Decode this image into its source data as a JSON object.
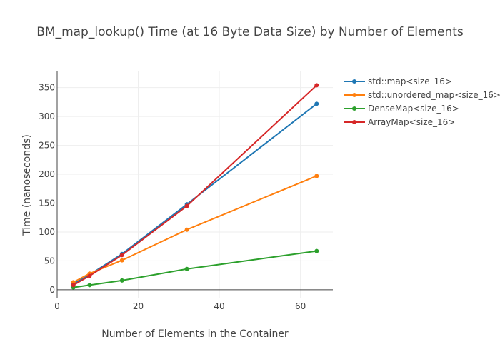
{
  "chart_data": {
    "type": "line",
    "title": "BM_map_lookup() Time (at 16 Byte Data Size) by Number of Elements",
    "xlabel": "Number of Elements in the Container",
    "ylabel": "Time (nanoseconds)",
    "xlim": [
      0,
      68
    ],
    "ylim": [
      -15,
      378
    ],
    "xticks": [
      0,
      20,
      40,
      60
    ],
    "yticks": [
      0,
      50,
      100,
      150,
      200,
      250,
      300,
      350
    ],
    "x": [
      4,
      8,
      16,
      32,
      64
    ],
    "grid": true,
    "legend_position": "top-right",
    "series": [
      {
        "name": "std::map<size_16>",
        "color": "#1f77b4",
        "values": [
          10,
          26,
          62,
          148,
          322
        ]
      },
      {
        "name": "std::unordered_map<size_16>",
        "color": "#ff7f0e",
        "values": [
          13,
          28,
          51,
          104,
          197
        ]
      },
      {
        "name": "DenseMap<size_16>",
        "color": "#2ca02c",
        "values": [
          4,
          8,
          16,
          36,
          67
        ]
      },
      {
        "name": "ArrayMap<size_16>",
        "color": "#d62728",
        "values": [
          8,
          24,
          60,
          145,
          354
        ]
      }
    ]
  }
}
